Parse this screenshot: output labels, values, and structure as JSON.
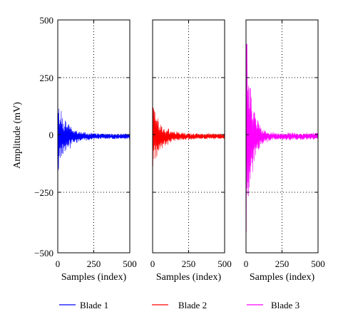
{
  "chart_data": [
    {
      "type": "line",
      "series": [
        {
          "name": "Blade 1",
          "color": "#0000ff",
          "peak_amplitude": 150,
          "settle_amplitude": 12
        }
      ],
      "xlabel": "Samples (index)",
      "ylabel": "Amplitude (mV)",
      "xlim": [
        0,
        500
      ],
      "ylim": [
        -500,
        500
      ],
      "xticks": [
        "0",
        "250",
        "500"
      ],
      "yticks": [
        "500",
        "250",
        "0",
        "−250",
        "−500"
      ],
      "grid": true
    },
    {
      "type": "line",
      "series": [
        {
          "name": "Blade 2",
          "color": "#ff0000",
          "peak_amplitude": 140,
          "settle_amplitude": 12
        }
      ],
      "xlabel": "Samples (index)",
      "ylabel": "",
      "xlim": [
        0,
        500
      ],
      "ylim": [
        -500,
        500
      ],
      "xticks": [
        "0",
        "250",
        "500"
      ],
      "yticks": [],
      "grid": true
    },
    {
      "type": "line",
      "series": [
        {
          "name": "Blade 3",
          "color": "#ff00ff",
          "peak_amplitude": 500,
          "settle_amplitude": 15
        }
      ],
      "xlabel": "Samples (index)",
      "ylabel": "",
      "xlim": [
        0,
        500
      ],
      "ylim": [
        -500,
        500
      ],
      "xticks": [
        "0",
        "250",
        "500"
      ],
      "yticks": [],
      "grid": true
    }
  ],
  "legend": {
    "placement": "bottom",
    "entries": [
      {
        "label": "Blade 1",
        "color": "#0000ff"
      },
      {
        "label": "Blade 2",
        "color": "#ff0000"
      },
      {
        "label": "Blade 3",
        "color": "#ff00ff"
      }
    ]
  }
}
